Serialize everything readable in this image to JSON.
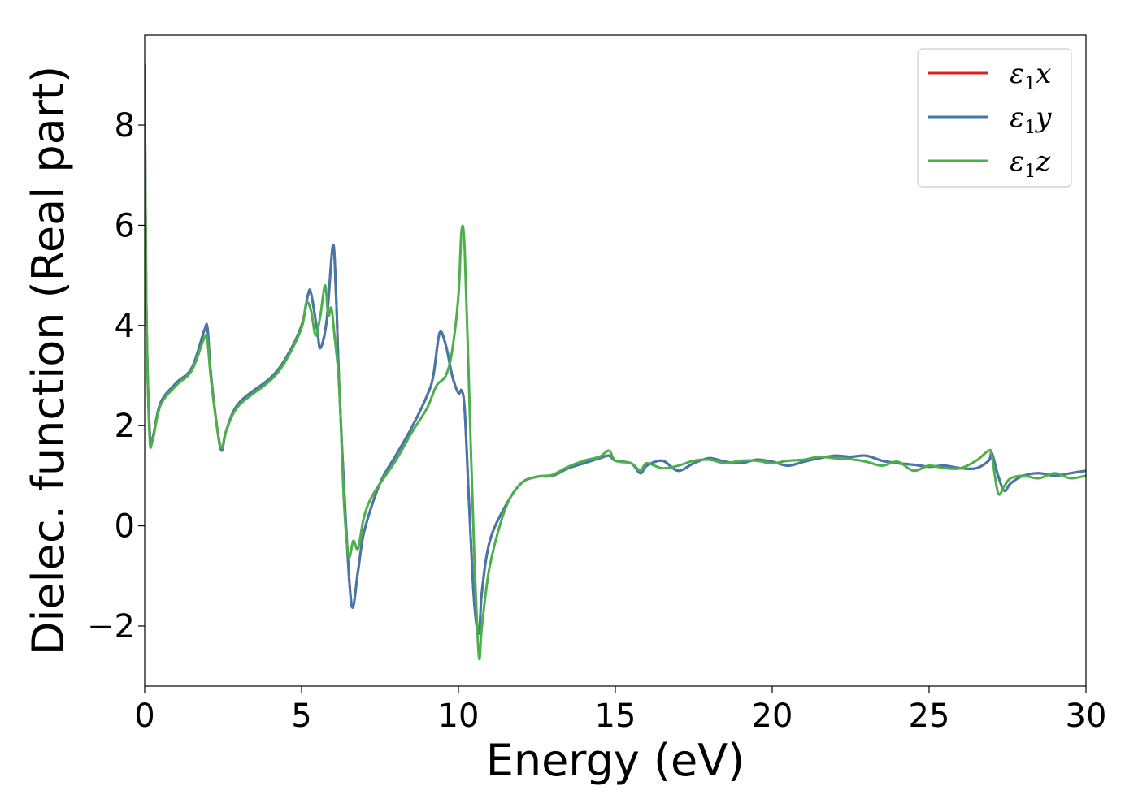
{
  "chart_data": {
    "type": "line",
    "xlabel": "Energy (eV)",
    "ylabel": "Dielec. function (Real part)",
    "xlim": [
      0,
      30
    ],
    "ylim": [
      -3.2,
      9.8
    ],
    "xticks": [
      0,
      5,
      10,
      15,
      20,
      25,
      30
    ],
    "xtick_labels": [
      "0",
      "5",
      "10",
      "15",
      "20",
      "25",
      "30"
    ],
    "yticks": [
      -2,
      0,
      2,
      4,
      6,
      8
    ],
    "ytick_labels": [
      "−2",
      "0",
      "2",
      "4",
      "6",
      "8"
    ],
    "grid": false,
    "legend_position": "top-right",
    "series": [
      {
        "name": "ε1x",
        "legend_base": "ε",
        "legend_sub": "1",
        "legend_var": "x",
        "color": "#e41a1c",
        "x": [
          0,
          0.05,
          0.15,
          0.25,
          0.5,
          1,
          1.5,
          1.9,
          2,
          2.1,
          2.3,
          2.45,
          2.6,
          3,
          4,
          4.5,
          5,
          5.2,
          5.3,
          5.5,
          5.6,
          5.8,
          6,
          6.1,
          6.2,
          6.4,
          6.6,
          6.8,
          7,
          7.5,
          8,
          8.5,
          9,
          9.2,
          9.4,
          9.6,
          9.8,
          10,
          10.1,
          10.2,
          10.35,
          10.5,
          10.65,
          10.75,
          11,
          11.5,
          12,
          12.5,
          13,
          13.5,
          14,
          14.5,
          14.8,
          15,
          15.5,
          15.8,
          16,
          16.5,
          17,
          17.5,
          18,
          18.5,
          19,
          19.5,
          20,
          20.5,
          21,
          21.5,
          22,
          22.5,
          23,
          23.5,
          24,
          24.5,
          25,
          25.5,
          26,
          26.5,
          26.9,
          27,
          27.2,
          27.4,
          27.6,
          28,
          28.5,
          29,
          29.5,
          30
        ],
        "y": [
          9.2,
          4.5,
          2.0,
          1.75,
          2.45,
          2.85,
          3.15,
          3.9,
          3.95,
          3.1,
          2.0,
          1.5,
          1.9,
          2.45,
          2.95,
          3.35,
          4.0,
          4.6,
          4.65,
          3.9,
          3.55,
          4.1,
          5.6,
          4.6,
          2.8,
          0.2,
          -1.6,
          -0.9,
          -0.1,
          0.85,
          1.4,
          1.95,
          2.6,
          3.0,
          3.85,
          3.6,
          3.0,
          2.65,
          2.7,
          2.3,
          0.3,
          -1.5,
          -2.15,
          -1.3,
          -0.3,
          0.4,
          0.85,
          0.98,
          1.0,
          1.15,
          1.25,
          1.35,
          1.4,
          1.3,
          1.25,
          1.05,
          1.2,
          1.3,
          1.1,
          1.25,
          1.35,
          1.28,
          1.25,
          1.32,
          1.28,
          1.2,
          1.28,
          1.35,
          1.4,
          1.38,
          1.4,
          1.3,
          1.25,
          1.22,
          1.18,
          1.2,
          1.15,
          1.15,
          1.3,
          1.45,
          1.0,
          0.7,
          0.85,
          1.0,
          1.05,
          1.0,
          1.05,
          1.1
        ]
      },
      {
        "name": "ε1y",
        "legend_base": "ε",
        "legend_sub": "1",
        "legend_var": "y",
        "color": "#4477aa",
        "x": [
          0,
          0.05,
          0.15,
          0.25,
          0.5,
          1,
          1.5,
          1.9,
          2,
          2.1,
          2.3,
          2.45,
          2.6,
          3,
          4,
          4.5,
          5,
          5.2,
          5.3,
          5.5,
          5.6,
          5.8,
          6,
          6.1,
          6.2,
          6.4,
          6.6,
          6.8,
          7,
          7.5,
          8,
          8.5,
          9,
          9.2,
          9.4,
          9.6,
          9.8,
          10,
          10.1,
          10.2,
          10.35,
          10.5,
          10.65,
          10.75,
          11,
          11.5,
          12,
          12.5,
          13,
          13.5,
          14,
          14.5,
          14.8,
          15,
          15.5,
          15.8,
          16,
          16.5,
          17,
          17.5,
          18,
          18.5,
          19,
          19.5,
          20,
          20.5,
          21,
          21.5,
          22,
          22.5,
          23,
          23.5,
          24,
          24.5,
          25,
          25.5,
          26,
          26.5,
          26.9,
          27,
          27.2,
          27.4,
          27.6,
          28,
          28.5,
          29,
          29.5,
          30
        ],
        "y": [
          9.2,
          4.5,
          2.0,
          1.75,
          2.45,
          2.85,
          3.15,
          3.9,
          3.95,
          3.1,
          2.0,
          1.5,
          1.9,
          2.45,
          2.95,
          3.35,
          4.0,
          4.6,
          4.65,
          3.9,
          3.55,
          4.1,
          5.6,
          4.6,
          2.8,
          0.2,
          -1.6,
          -0.9,
          -0.1,
          0.85,
          1.4,
          1.95,
          2.6,
          3.0,
          3.85,
          3.6,
          3.0,
          2.65,
          2.7,
          2.3,
          0.3,
          -1.5,
          -2.15,
          -1.3,
          -0.3,
          0.4,
          0.85,
          0.98,
          1.0,
          1.15,
          1.25,
          1.35,
          1.4,
          1.3,
          1.25,
          1.05,
          1.2,
          1.3,
          1.1,
          1.25,
          1.35,
          1.28,
          1.25,
          1.32,
          1.28,
          1.2,
          1.28,
          1.35,
          1.4,
          1.38,
          1.4,
          1.3,
          1.25,
          1.22,
          1.18,
          1.2,
          1.15,
          1.15,
          1.3,
          1.45,
          1.0,
          0.7,
          0.85,
          1.0,
          1.05,
          1.0,
          1.05,
          1.1
        ]
      },
      {
        "name": "ε1z",
        "legend_base": "ε",
        "legend_sub": "1",
        "legend_var": "z",
        "color": "#4daf4a",
        "x": [
          0,
          0.05,
          0.15,
          0.25,
          0.5,
          1,
          1.5,
          1.9,
          2,
          2.1,
          2.3,
          2.45,
          2.6,
          3,
          4,
          4.5,
          5,
          5.15,
          5.3,
          5.45,
          5.6,
          5.75,
          5.85,
          5.95,
          6.05,
          6.2,
          6.35,
          6.5,
          6.65,
          6.8,
          7,
          7.3,
          8,
          8.5,
          9,
          9.3,
          9.6,
          9.8,
          10,
          10.1,
          10.2,
          10.35,
          10.5,
          10.65,
          10.75,
          11,
          11.5,
          12,
          12.5,
          13,
          13.5,
          14,
          14.5,
          14.8,
          15,
          15.5,
          15.8,
          16,
          16.5,
          17,
          17.5,
          18,
          18.5,
          19,
          19.5,
          20,
          20.5,
          21,
          21.5,
          22,
          22.5,
          23,
          23.5,
          24,
          24.5,
          25,
          25.5,
          26,
          26.5,
          26.9,
          27,
          27.2,
          27.4,
          27.6,
          28,
          28.5,
          29,
          29.5,
          30
        ],
        "y": [
          9.2,
          4.6,
          1.85,
          1.7,
          2.4,
          2.8,
          3.1,
          3.75,
          3.7,
          3.0,
          2.0,
          1.55,
          1.9,
          2.4,
          2.9,
          3.3,
          3.95,
          4.45,
          4.3,
          3.8,
          4.2,
          4.8,
          4.2,
          4.35,
          3.8,
          2.8,
          0.5,
          -0.6,
          -0.3,
          -0.45,
          0.2,
          0.65,
          1.3,
          1.85,
          2.35,
          2.8,
          3.0,
          3.5,
          4.6,
          5.9,
          5.5,
          2.5,
          -0.5,
          -2.6,
          -2.0,
          -0.8,
          0.35,
          0.85,
          0.98,
          1.02,
          1.18,
          1.3,
          1.38,
          1.5,
          1.3,
          1.25,
          1.1,
          1.25,
          1.15,
          1.2,
          1.3,
          1.32,
          1.25,
          1.3,
          1.3,
          1.25,
          1.3,
          1.32,
          1.38,
          1.35,
          1.33,
          1.28,
          1.2,
          1.28,
          1.1,
          1.2,
          1.15,
          1.15,
          1.3,
          1.5,
          1.4,
          0.65,
          0.8,
          0.95,
          1.0,
          0.95,
          1.05,
          0.95,
          1.0
        ]
      }
    ]
  }
}
